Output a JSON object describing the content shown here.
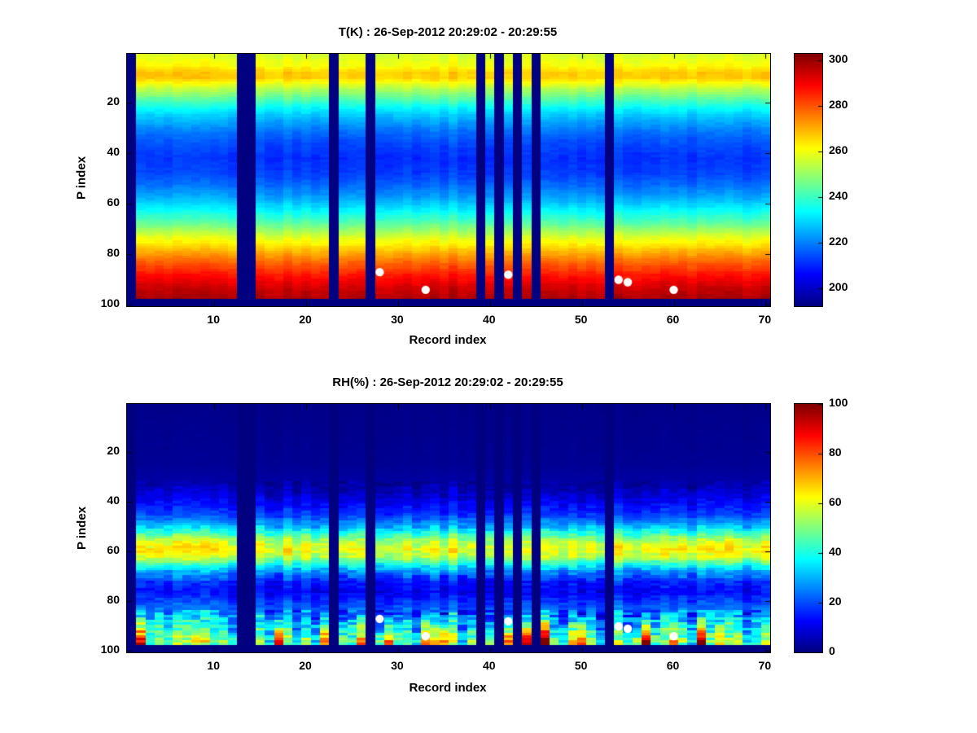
{
  "figure": {
    "background": "#ffffff",
    "date_range": "26-Sep-2012 20:29:02 - 20:29:55"
  },
  "chart_data": [
    {
      "type": "heatmap",
      "variable": "T(K)",
      "title": "T(K) : 26-Sep-2012 20:29:02 - 20:29:55",
      "xlabel": "Record index",
      "ylabel": "P index",
      "colormap": "jet",
      "x_range": [
        1,
        70
      ],
      "y_range": [
        1,
        100
      ],
      "y_axis_reversed": true,
      "x_ticks": [
        10,
        20,
        30,
        40,
        50,
        60,
        70
      ],
      "y_ticks": [
        20,
        40,
        60,
        80,
        100
      ],
      "colorbar": {
        "min": 192,
        "max": 303,
        "ticks": [
          200,
          220,
          240,
          260,
          280,
          300
        ]
      },
      "vertical_profile": {
        "p": [
          1,
          5,
          8,
          10,
          12,
          15,
          18,
          22,
          26,
          31,
          36,
          42,
          48,
          53,
          58,
          63,
          68,
          73,
          78,
          83,
          88,
          93,
          97,
          100
        ],
        "value": [
          257,
          261,
          267,
          267,
          261,
          252,
          244,
          234,
          226,
          219,
          214,
          211,
          213,
          218,
          225,
          234,
          245,
          257,
          268,
          278,
          287,
          294,
          298,
          300
        ]
      },
      "missing_records": [
        1,
        13,
        14,
        23,
        27,
        39,
        41,
        43,
        45,
        53
      ],
      "missing_bottom_rows_start": 98,
      "markers": {
        "shape": "circle",
        "color": "#ffffff",
        "points": [
          {
            "record": 28,
            "p": 87
          },
          {
            "record": 33,
            "p": 94
          },
          {
            "record": 42,
            "p": 88
          },
          {
            "record": 54,
            "p": 90
          },
          {
            "record": 55,
            "p": 91
          },
          {
            "record": 60,
            "p": 94
          }
        ]
      }
    },
    {
      "type": "heatmap",
      "variable": "RH(%)",
      "title": "RH(%) : 26-Sep-2012 20:29:02 - 20:29:55",
      "xlabel": "Record index",
      "ylabel": "P index",
      "colormap": "jet",
      "x_range": [
        1,
        70
      ],
      "y_range": [
        1,
        100
      ],
      "y_axis_reversed": true,
      "x_ticks": [
        10,
        20,
        30,
        40,
        50,
        60,
        70
      ],
      "y_ticks": [
        20,
        40,
        60,
        80,
        100
      ],
      "colorbar": {
        "min": 0,
        "max": 100,
        "ticks": [
          0,
          20,
          40,
          60,
          80,
          100
        ]
      },
      "vertical_profile": {
        "p": [
          1,
          25,
          33,
          37,
          41,
          45,
          49,
          53,
          56,
          59,
          62,
          65,
          68,
          72,
          76,
          80,
          84,
          88,
          92,
          96,
          100
        ],
        "value": [
          1,
          2,
          4,
          8,
          13,
          18,
          28,
          45,
          57,
          62,
          57,
          42,
          28,
          15,
          12,
          18,
          24,
          30,
          38,
          45,
          40
        ]
      },
      "missing_records": [
        1,
        13,
        14,
        23,
        27,
        39,
        41,
        43,
        45,
        53
      ],
      "missing_bottom_rows_start": 98,
      "markers": {
        "shape": "circle",
        "color": "#ffffff",
        "points": [
          {
            "record": 28,
            "p": 87
          },
          {
            "record": 33,
            "p": 94
          },
          {
            "record": 42,
            "p": 88
          },
          {
            "record": 54,
            "p": 90
          },
          {
            "record": 55,
            "p": 91
          },
          {
            "record": 60,
            "p": 94
          }
        ]
      }
    }
  ]
}
